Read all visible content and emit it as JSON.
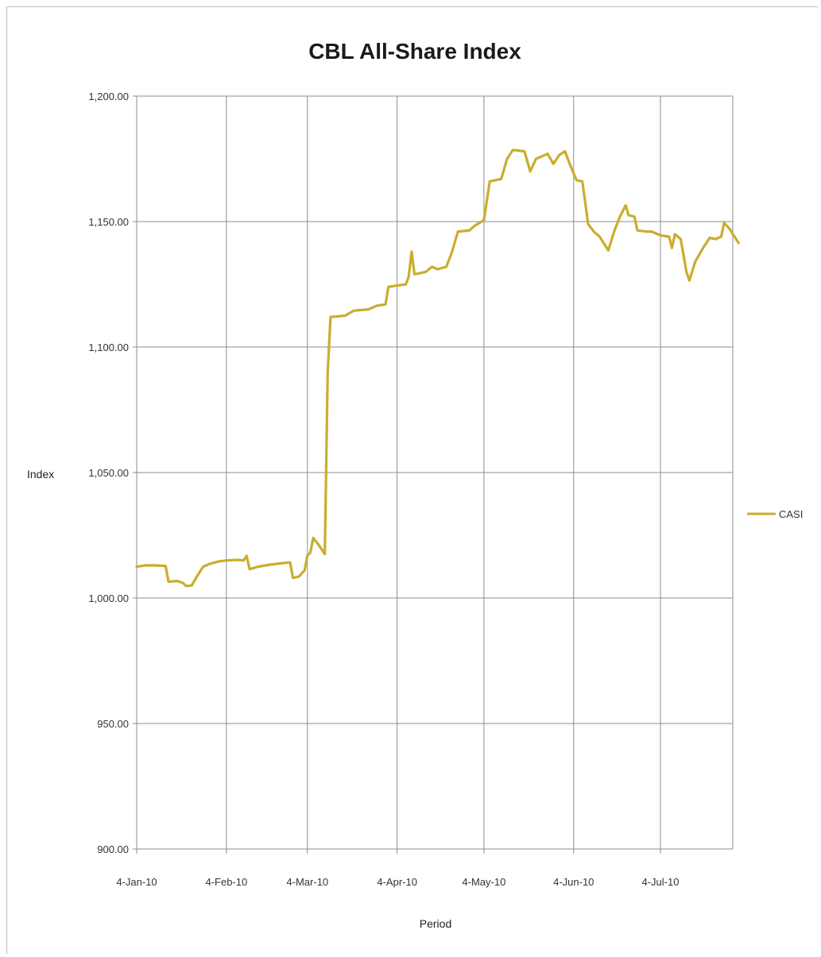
{
  "chart_data": {
    "type": "line",
    "title": "CBL All-Share Index",
    "xlabel": "Period",
    "ylabel": "Index",
    "ylim": [
      900,
      1200
    ],
    "xlim": [
      "2010-01-04",
      "2010-07-29"
    ],
    "y_ticks": [
      "900.00",
      "950.00",
      "1,000.00",
      "1,050.00",
      "1,100.00",
      "1,150.00",
      "1,200.00"
    ],
    "x_ticks": [
      {
        "date": "2010-01-04",
        "label": "4-Jan-10"
      },
      {
        "date": "2010-02-04",
        "label": "4-Feb-10"
      },
      {
        "date": "2010-03-04",
        "label": "4-Mar-10"
      },
      {
        "date": "2010-04-04",
        "label": "4-Apr-10"
      },
      {
        "date": "2010-05-04",
        "label": "4-May-10"
      },
      {
        "date": "2010-06-04",
        "label": "4-Jun-10"
      },
      {
        "date": "2010-07-04",
        "label": "4-Jul-10"
      }
    ],
    "grid": true,
    "legend_position": "right",
    "series": [
      {
        "name": "CASI",
        "color": "#c9ae2e",
        "points": [
          [
            "2010-01-04",
            1012.5
          ],
          [
            "2010-01-07",
            1013.0
          ],
          [
            "2010-01-10",
            1013.0
          ],
          [
            "2010-01-14",
            1012.8
          ],
          [
            "2010-01-15",
            1006.5
          ],
          [
            "2010-01-18",
            1006.8
          ],
          [
            "2010-01-20",
            1006.0
          ],
          [
            "2010-01-21",
            1004.8
          ],
          [
            "2010-01-23",
            1005.0
          ],
          [
            "2010-01-25",
            1009.0
          ],
          [
            "2010-01-27",
            1012.5
          ],
          [
            "2010-01-29",
            1013.5
          ],
          [
            "2010-02-01",
            1014.5
          ],
          [
            "2010-02-04",
            1015.0
          ],
          [
            "2010-02-08",
            1015.2
          ],
          [
            "2010-02-10",
            1015.0
          ],
          [
            "2010-02-11",
            1016.8
          ],
          [
            "2010-02-12",
            1011.5
          ],
          [
            "2010-02-15",
            1012.5
          ],
          [
            "2010-02-19",
            1013.3
          ],
          [
            "2010-02-24",
            1014.0
          ],
          [
            "2010-02-26",
            1014.2
          ],
          [
            "2010-02-27",
            1008.0
          ],
          [
            "2010-03-01",
            1008.5
          ],
          [
            "2010-03-03",
            1011.0
          ],
          [
            "2010-03-04",
            1017.0
          ],
          [
            "2010-03-05",
            1018.0
          ],
          [
            "2010-03-06",
            1024.0
          ],
          [
            "2010-03-08",
            1021.0
          ],
          [
            "2010-03-10",
            1017.5
          ],
          [
            "2010-03-11",
            1090.0
          ],
          [
            "2010-03-12",
            1112.0
          ],
          [
            "2010-03-17",
            1112.5
          ],
          [
            "2010-03-20",
            1114.5
          ],
          [
            "2010-03-25",
            1115.0
          ],
          [
            "2010-03-28",
            1116.5
          ],
          [
            "2010-03-31",
            1117.0
          ],
          [
            "2010-04-01",
            1124.0
          ],
          [
            "2010-04-04",
            1124.5
          ],
          [
            "2010-04-07",
            1125.0
          ],
          [
            "2010-04-08",
            1128.0
          ],
          [
            "2010-04-09",
            1138.0
          ],
          [
            "2010-04-10",
            1129.0
          ],
          [
            "2010-04-14",
            1130.0
          ],
          [
            "2010-04-16",
            1132.0
          ],
          [
            "2010-04-18",
            1131.0
          ],
          [
            "2010-04-21",
            1132.0
          ],
          [
            "2010-04-23",
            1138.0
          ],
          [
            "2010-04-25",
            1146.0
          ],
          [
            "2010-04-29",
            1146.5
          ],
          [
            "2010-05-01",
            1148.5
          ],
          [
            "2010-05-04",
            1150.5
          ],
          [
            "2010-05-06",
            1166.0
          ],
          [
            "2010-05-10",
            1167.0
          ],
          [
            "2010-05-12",
            1175.0
          ],
          [
            "2010-05-14",
            1178.5
          ],
          [
            "2010-05-18",
            1178.0
          ],
          [
            "2010-05-20",
            1170.0
          ],
          [
            "2010-05-22",
            1175.0
          ],
          [
            "2010-05-26",
            1177.0
          ],
          [
            "2010-05-28",
            1173.0
          ],
          [
            "2010-05-30",
            1176.5
          ],
          [
            "2010-06-01",
            1178.0
          ],
          [
            "2010-06-03",
            1172.0
          ],
          [
            "2010-06-05",
            1166.5
          ],
          [
            "2010-06-07",
            1166.0
          ],
          [
            "2010-06-09",
            1149.0
          ],
          [
            "2010-06-11",
            1146.0
          ],
          [
            "2010-06-13",
            1144.0
          ],
          [
            "2010-06-16",
            1138.5
          ],
          [
            "2010-06-18",
            1146.0
          ],
          [
            "2010-06-20",
            1152.0
          ],
          [
            "2010-06-22",
            1156.5
          ],
          [
            "2010-06-23",
            1152.5
          ],
          [
            "2010-06-25",
            1152.0
          ],
          [
            "2010-06-26",
            1146.5
          ],
          [
            "2010-06-29",
            1146.0
          ],
          [
            "2010-07-01",
            1146.0
          ],
          [
            "2010-07-04",
            1144.5
          ],
          [
            "2010-07-07",
            1144.0
          ],
          [
            "2010-07-08",
            1139.5
          ],
          [
            "2010-07-09",
            1145.0
          ],
          [
            "2010-07-11",
            1143.0
          ],
          [
            "2010-07-13",
            1130.0
          ],
          [
            "2010-07-14",
            1126.5
          ],
          [
            "2010-07-16",
            1134.0
          ],
          [
            "2010-07-19",
            1140.0
          ],
          [
            "2010-07-21",
            1143.5
          ],
          [
            "2010-07-23",
            1143.0
          ],
          [
            "2010-07-25",
            1144.0
          ],
          [
            "2010-07-26",
            1149.5
          ],
          [
            "2010-07-28",
            1147.0
          ],
          [
            "2010-07-29",
            1145.0
          ],
          [
            "2010-07-31",
            1141.5
          ]
        ]
      }
    ]
  }
}
